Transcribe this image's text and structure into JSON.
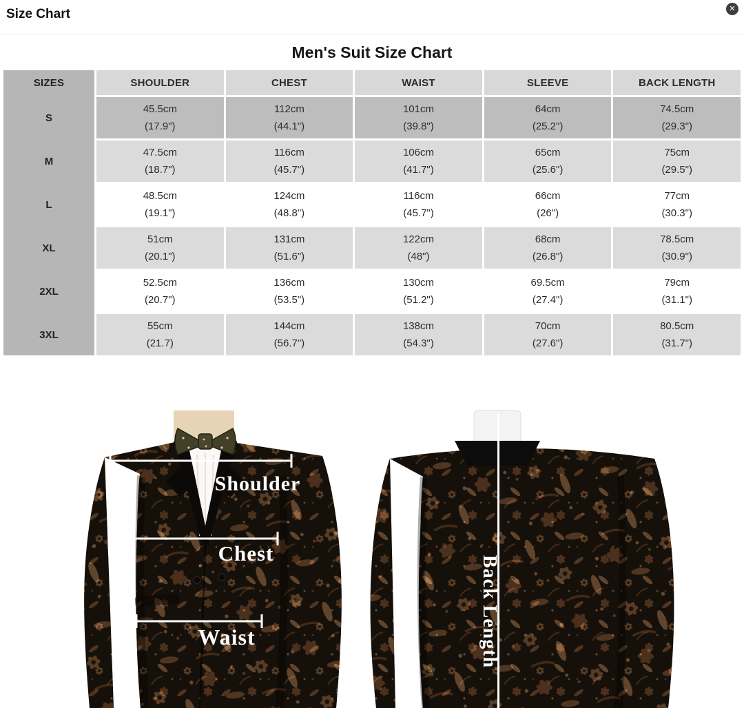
{
  "modal": {
    "title": "Size Chart",
    "close_glyph": "✕"
  },
  "chart": {
    "title": "Men's Suit Size Chart"
  },
  "table": {
    "columns": [
      "SIZES",
      "SHOULDER",
      "CHEST",
      "WAIST",
      "SLEEVE",
      "BACK LENGTH"
    ],
    "rows": [
      {
        "size": "S",
        "shade": "dark",
        "cells": [
          [
            "45.5cm",
            "(17.9\")"
          ],
          [
            "112cm",
            "(44.1\")"
          ],
          [
            "101cm",
            "(39.8\")"
          ],
          [
            "64cm",
            "(25.2\")"
          ],
          [
            "74.5cm",
            "(29.3\")"
          ]
        ]
      },
      {
        "size": "M",
        "shade": "mid",
        "cells": [
          [
            "47.5cm",
            "(18.7\")"
          ],
          [
            "116cm",
            "(45.7\")"
          ],
          [
            "106cm",
            "(41.7\")"
          ],
          [
            "65cm",
            "(25.6\")"
          ],
          [
            "75cm",
            "(29.5\")"
          ]
        ]
      },
      {
        "size": "L",
        "shade": "white",
        "cells": [
          [
            "48.5cm",
            "(19.1\")"
          ],
          [
            "124cm",
            "(48.8\")"
          ],
          [
            "116cm",
            "(45.7\")"
          ],
          [
            "66cm",
            "(26\")"
          ],
          [
            "77cm",
            "(30.3\")"
          ]
        ]
      },
      {
        "size": "XL",
        "shade": "mid",
        "cells": [
          [
            "51cm",
            "(20.1\")"
          ],
          [
            "131cm",
            "(51.6\")"
          ],
          [
            "122cm",
            "(48\")"
          ],
          [
            "68cm",
            "(26.8\")"
          ],
          [
            "78.5cm",
            "(30.9\")"
          ]
        ]
      },
      {
        "size": "2XL",
        "shade": "white",
        "cells": [
          [
            "52.5cm",
            "(20.7\")"
          ],
          [
            "136cm",
            "(53.5\")"
          ],
          [
            "130cm",
            "(51.2\")"
          ],
          [
            "69.5cm",
            "(27.4\")"
          ],
          [
            "79cm",
            "(31.1\")"
          ]
        ]
      },
      {
        "size": "3XL",
        "shade": "mid",
        "cells": [
          [
            "55cm",
            "(21.7)"
          ],
          [
            "144cm",
            "(56.7\")"
          ],
          [
            "138cm",
            "(54.3\")"
          ],
          [
            "70cm",
            "(27.6\")"
          ],
          [
            "80.5cm",
            "(31.7\")"
          ]
        ]
      }
    ]
  },
  "diagram": {
    "shoulder_label": "Shoulder",
    "chest_label": "Chest",
    "waist_label": "Waist",
    "back_label": "Back Length"
  },
  "colors": {
    "sizes_column_bg": "#b6b6b6",
    "header_bg": "#d8d8d8",
    "row_dark_bg": "#bdbdbd",
    "row_mid_bg": "#dbdbdb",
    "close_button_bg": "#3e3e3e",
    "brocade_brown": "#9a6a42",
    "measure_line": "#ffffff"
  }
}
